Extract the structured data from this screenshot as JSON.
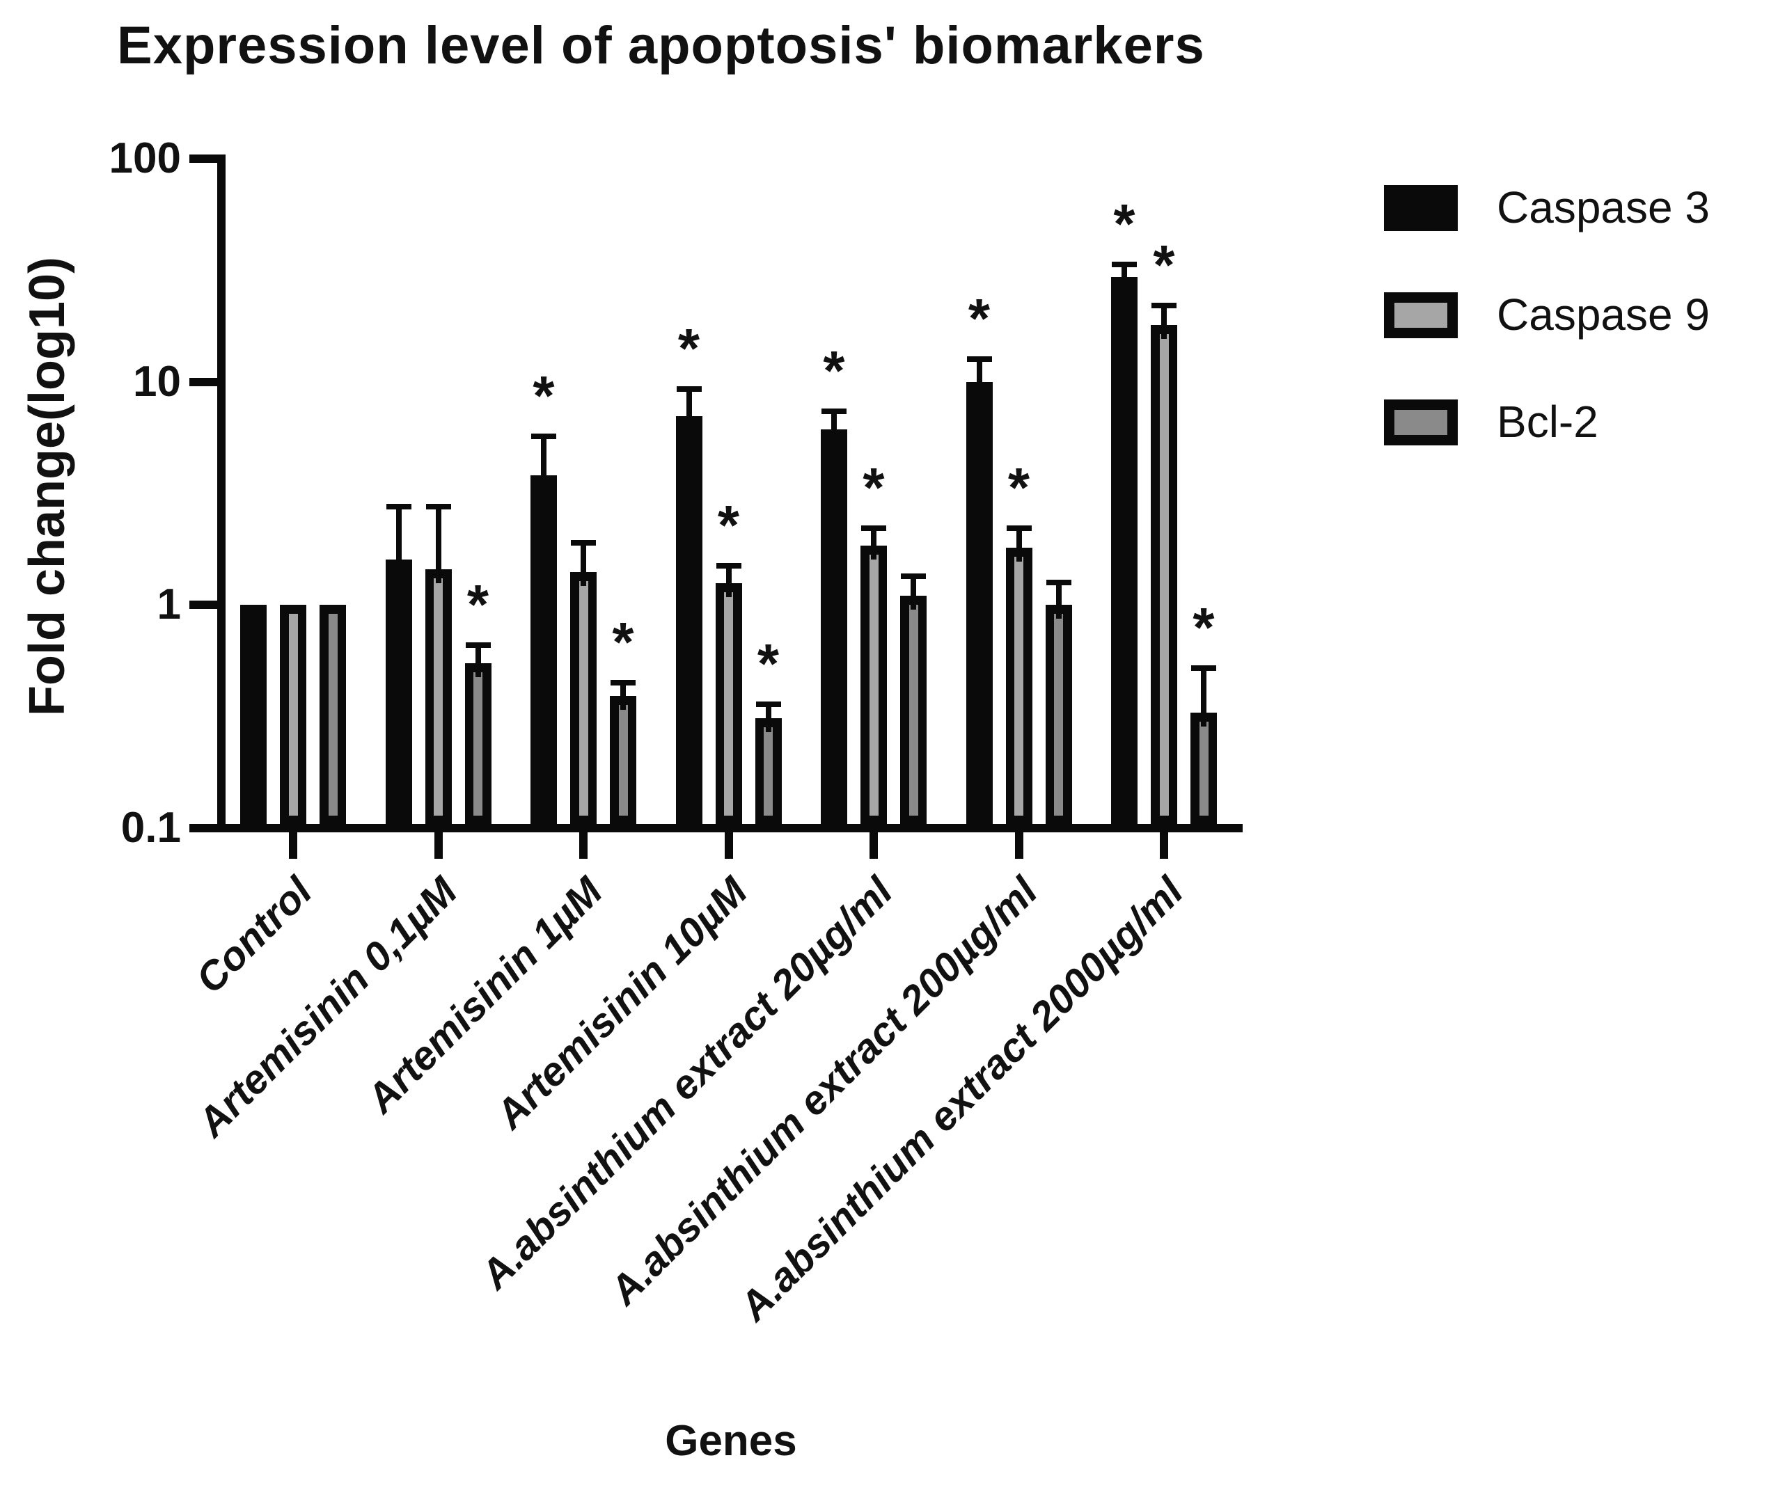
{
  "title": "Expression level of apoptosis' biomarkers",
  "chart_data": {
    "type": "bar",
    "title": "Expression level of apoptosis' biomarkers",
    "xlabel": "Genes",
    "ylabel": "Fold change(log10)",
    "y_scale": "log10",
    "ylim": [
      0.1,
      100
    ],
    "grid": false,
    "legend_position": "right",
    "significance_symbol": "*",
    "yticks": [
      {
        "label": "100",
        "value": 100
      },
      {
        "label": "10",
        "value": 10
      },
      {
        "label": "1",
        "value": 1
      },
      {
        "label": "0.1",
        "value": 0.1
      }
    ],
    "categories": [
      "Control",
      "Artemisinin 0,1µM",
      "Artemisinin 1µM",
      "Artemisinin 10µM",
      "A.absinthium extract 20µg/ml",
      "A.absinthium extract 200µg/ml",
      "A.absinthium  extract 2000µg/ml"
    ],
    "series": [
      {
        "name": "Caspase 3",
        "fill": "#0a0a0a",
        "inner_fill": null,
        "values": [
          1.0,
          1.6,
          3.8,
          7.0,
          6.1,
          10.0,
          29.5
        ],
        "error_top": [
          null,
          2.75,
          5.7,
          9.3,
          7.4,
          12.6,
          33.5
        ],
        "significant": [
          false,
          false,
          true,
          true,
          true,
          true,
          true
        ]
      },
      {
        "name": "Caspase 9",
        "fill": "#0a0a0a",
        "inner_fill": "#a6a6a6",
        "values": [
          1.0,
          1.45,
          1.4,
          1.25,
          1.85,
          1.8,
          18.0
        ],
        "error_top": [
          null,
          2.75,
          1.9,
          1.5,
          2.2,
          2.2,
          22.0
        ],
        "significant": [
          false,
          false,
          false,
          true,
          true,
          true,
          true
        ]
      },
      {
        "name": "Bcl-2",
        "fill": "#0a0a0a",
        "inner_fill": "#8a8a8a",
        "values": [
          1.0,
          0.55,
          0.39,
          0.31,
          1.1,
          1.0,
          0.33
        ],
        "error_top": [
          null,
          0.66,
          0.45,
          0.36,
          1.35,
          1.26,
          0.52
        ],
        "significant": [
          false,
          true,
          true,
          true,
          false,
          false,
          true
        ]
      }
    ]
  },
  "legend": {
    "items": [
      {
        "label": "Caspase 3"
      },
      {
        "label": "Caspase 9"
      },
      {
        "label": "Bcl-2"
      }
    ]
  }
}
